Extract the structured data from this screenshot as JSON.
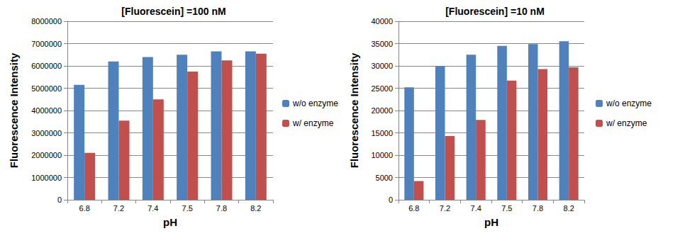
{
  "chart_data": [
    {
      "type": "bar",
      "title": "[Fluorescein] =100 nM",
      "x_label": "pH",
      "y_label": "Fluorescence Intensity",
      "categories": [
        "6.8",
        "7.2",
        "7.4",
        "7.5",
        "7.8",
        "8.2"
      ],
      "series": [
        {
          "name": "w/o enzyme",
          "color": "#4f81bd",
          "values": [
            5150000,
            6200000,
            6400000,
            6500000,
            6650000,
            6650000
          ]
        },
        {
          "name": "w/ enzyme",
          "color": "#c0504d",
          "values": [
            2100000,
            3550000,
            4500000,
            5750000,
            6250000,
            6550000
          ]
        }
      ],
      "ylim": [
        0,
        8000000
      ],
      "yticks": [
        0,
        1000000,
        2000000,
        3000000,
        4000000,
        5000000,
        6000000,
        7000000,
        8000000
      ],
      "grid": true,
      "legend": "right"
    },
    {
      "type": "bar",
      "title": "[Fluorescein] =10 nM",
      "x_label": "pH",
      "y_label": "Fluorescence Intensity",
      "categories": [
        "6.8",
        "7.2",
        "7.4",
        "7.5",
        "7.8",
        "8.2"
      ],
      "series": [
        {
          "name": "w/o enzyme",
          "color": "#4f81bd",
          "values": [
            25200,
            30000,
            32500,
            34500,
            34900,
            35500
          ]
        },
        {
          "name": "w/ enzyme",
          "color": "#c0504d",
          "values": [
            4200,
            14300,
            17900,
            26700,
            29300,
            29700
          ]
        }
      ],
      "ylim": [
        0,
        40000
      ],
      "yticks": [
        0,
        5000,
        10000,
        15000,
        20000,
        25000,
        30000,
        35000,
        40000
      ],
      "grid": true,
      "legend": "right"
    }
  ]
}
